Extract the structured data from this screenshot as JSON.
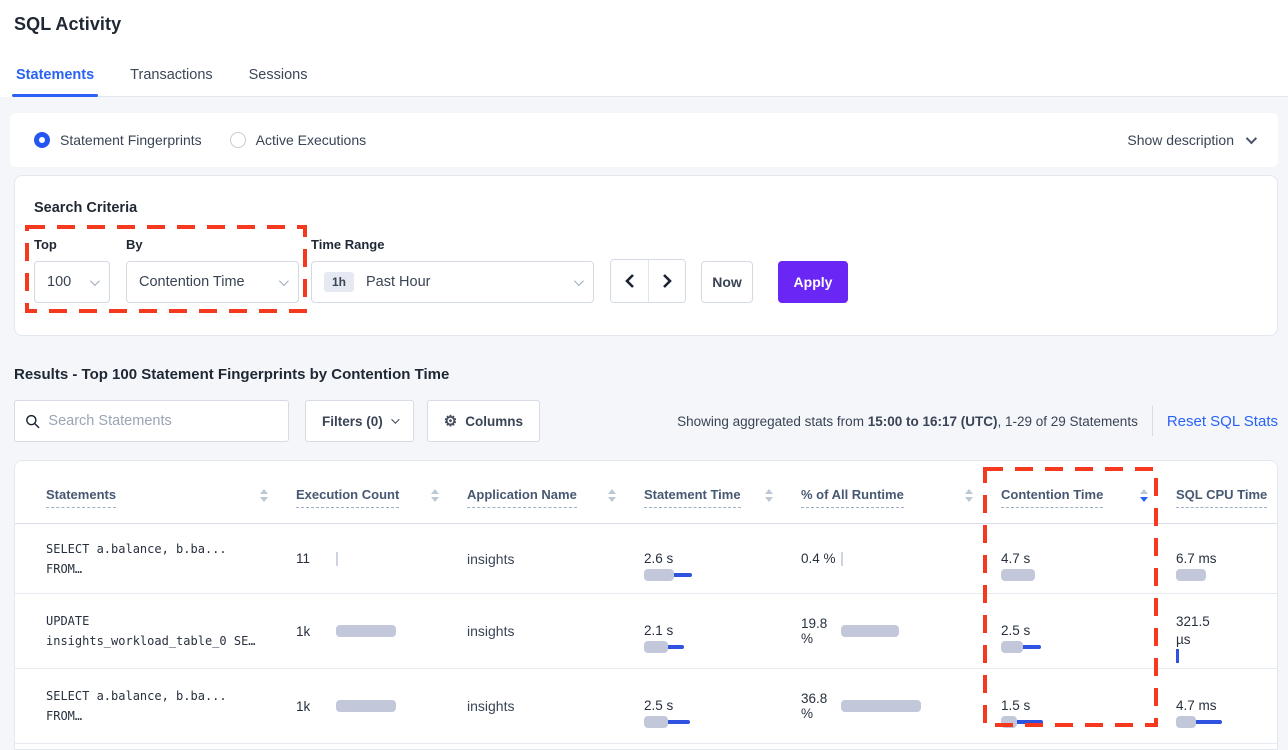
{
  "page": {
    "title": "SQL Activity"
  },
  "tabs": [
    {
      "label": "Statements",
      "active": true
    },
    {
      "label": "Transactions",
      "active": false
    },
    {
      "label": "Sessions",
      "active": false
    }
  ],
  "view_toggle": {
    "options": [
      {
        "label": "Statement Fingerprints",
        "selected": true
      },
      {
        "label": "Active Executions",
        "selected": false
      }
    ],
    "show_description": "Show description"
  },
  "search_criteria": {
    "heading": "Search Criteria",
    "top": {
      "label": "Top",
      "value": "100"
    },
    "by": {
      "label": "By",
      "value": "Contention Time"
    },
    "time_range": {
      "label": "Time Range",
      "badge": "1h",
      "value": "Past Hour"
    },
    "prev_label": "previous time interval",
    "next_label": "next time interval",
    "now_label": "Now",
    "apply_label": "Apply"
  },
  "results": {
    "heading": "Results - Top 100 Statement Fingerprints by Contention Time",
    "search_placeholder": "Search Statements",
    "filters_label": "Filters (0)",
    "columns_label": "Columns",
    "stats_prefix": "Showing aggregated stats from ",
    "stats_range": "15:00 to 16:17 (UTC)",
    "stats_suffix": ", 1-29 of 29 Statements",
    "reset_label": "Reset SQL Stats"
  },
  "table": {
    "columns": [
      "Statements",
      "Execution Count",
      "Application Name",
      "Statement Time",
      "% of All Runtime",
      "Contention Time",
      "SQL CPU Time"
    ],
    "sorted_column": "Contention Time",
    "sort_direction": "desc",
    "rows": [
      {
        "statement_line1": "SELECT a.balance, b.ba...",
        "statement_line2": "FROM…",
        "execution_count": "11",
        "application_name": "insights",
        "statement_time": "2.6 s",
        "pct_runtime": "0.4 %",
        "contention_time": "4.7 s",
        "sql_cpu_time": "6.7 ms",
        "bars": {
          "exec": {
            "tick": "gray"
          },
          "stmt": {
            "gray": 30,
            "blue": 48
          },
          "pct": {
            "tick": "gray"
          },
          "cont": {
            "gray": 34
          },
          "cpu": {
            "gray": 30
          }
        }
      },
      {
        "statement_line1": "UPDATE",
        "statement_line2": "insights_workload_table_0 SE…",
        "execution_count": "1k",
        "application_name": "insights",
        "statement_time": "2.1 s",
        "pct_runtime": "19.8 %",
        "contention_time": "2.5 s",
        "sql_cpu_time": "321.5 µs",
        "bars": {
          "exec": {
            "gray": 60
          },
          "stmt": {
            "gray": 24,
            "blue": 40
          },
          "pct": {
            "gray": 58
          },
          "cont": {
            "gray": 22,
            "blue": 40
          },
          "cpu": {
            "tick": "blue"
          }
        }
      },
      {
        "statement_line1": "SELECT a.balance, b.ba...",
        "statement_line2": "FROM…",
        "execution_count": "1k",
        "application_name": "insights",
        "statement_time": "2.5 s",
        "pct_runtime": "36.8 %",
        "contention_time": "1.5 s",
        "sql_cpu_time": "4.7 ms",
        "bars": {
          "exec": {
            "gray": 60
          },
          "stmt": {
            "gray": 24,
            "blue": 46
          },
          "pct": {
            "gray": 80
          },
          "cont": {
            "gray": 16,
            "blue": 42
          },
          "cpu": {
            "gray": 20,
            "blue": 46
          }
        }
      }
    ]
  },
  "colors": {
    "accent_blue": "#2962F5",
    "apply_purple": "#6926F5",
    "highlight_red": "#F4391F",
    "bar_gray": "#C2C8DA",
    "bar_blue": "#2D53E0",
    "page_background": "#F4F6FA"
  }
}
